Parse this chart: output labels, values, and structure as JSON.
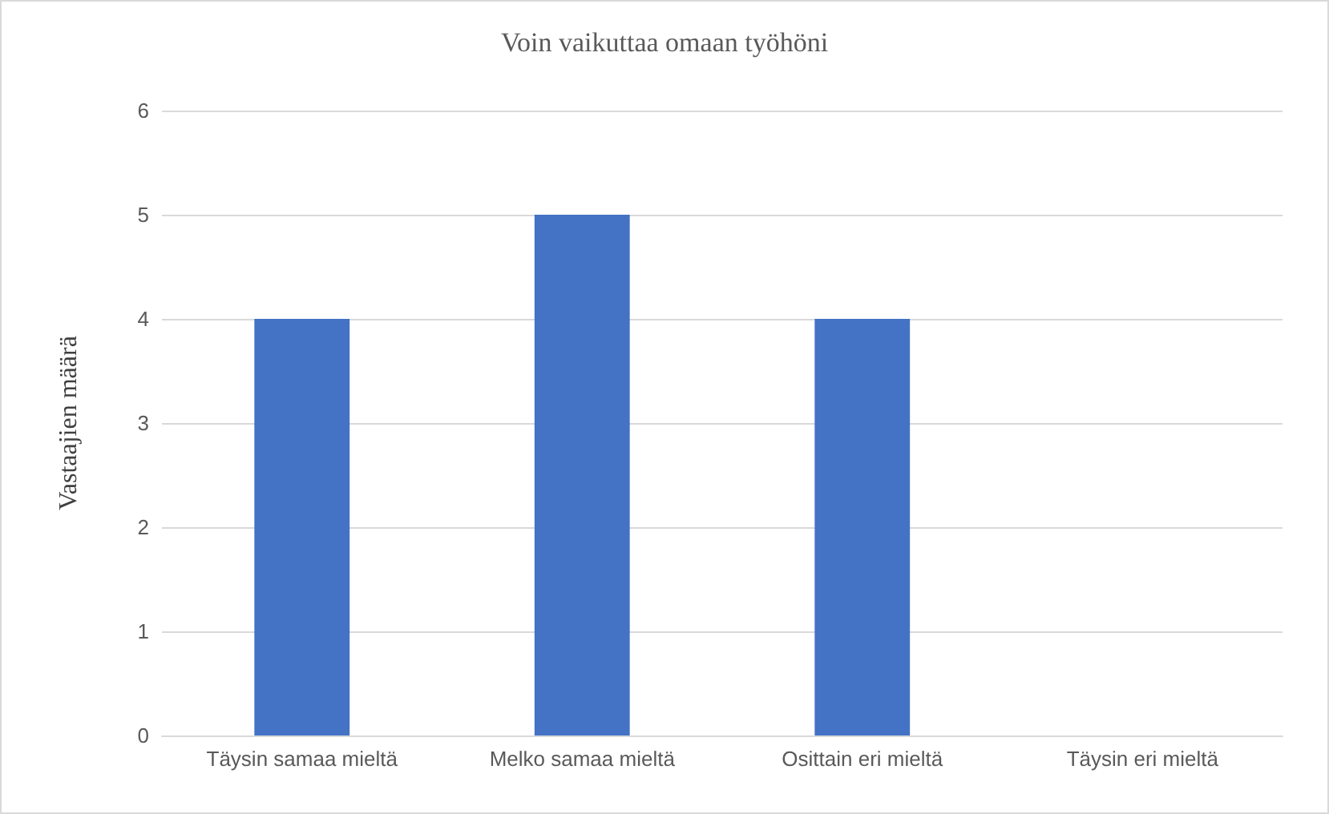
{
  "chart_data": {
    "type": "bar",
    "title": "Voin vaikuttaa omaan työhöni",
    "ylabel": "Vastaajien määrä",
    "categories": [
      "Täysin samaa mieltä",
      "Melko samaa mieltä",
      "Osittain eri mieltä",
      "Täysin eri mieltä"
    ],
    "values": [
      4,
      5,
      4,
      0
    ],
    "color": "#4472c4",
    "ylim": [
      0,
      6
    ],
    "yticks": [
      0,
      1,
      2,
      3,
      4,
      5,
      6
    ],
    "grid": "y"
  }
}
